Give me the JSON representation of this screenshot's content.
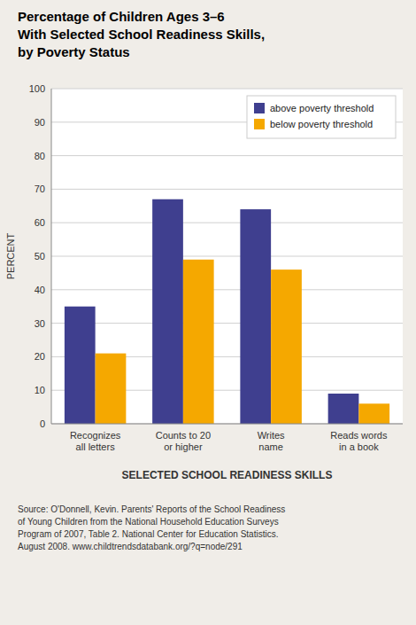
{
  "chart_data": {
    "type": "bar",
    "title": "Percentage of Children Ages 3–6\nWith Selected School Readiness Skills,\nby Poverty Status",
    "categories": [
      "Recognizes\nall letters",
      "Counts to 20\nor higher",
      "Writes\nname",
      "Reads words\nin a book"
    ],
    "series": [
      {
        "name": "above poverty threshold",
        "color": "#3f3f8f",
        "values": [
          35,
          67,
          64,
          9
        ]
      },
      {
        "name": "below poverty threshold",
        "color": "#f5a800",
        "values": [
          21,
          49,
          46,
          6
        ]
      }
    ],
    "ylabel": "PERCENT",
    "xlabel": "SELECTED SCHOOL READINESS SKILLS",
    "source": "Source: O'Donnell, Kevin. Parents' Reports of the School Readiness\nof Young Children from the National Household Education Surveys\nProgram of 2007, Table 2. National Center for Education Statistics.\nAugust 2008. www.childtrendsdatabank.org/?q=node/291",
    "ylim": [
      0,
      100
    ],
    "yticks": [
      0,
      10,
      20,
      30,
      40,
      50,
      60,
      70,
      80,
      90,
      100
    ],
    "grid": true,
    "legend": "upper right"
  }
}
